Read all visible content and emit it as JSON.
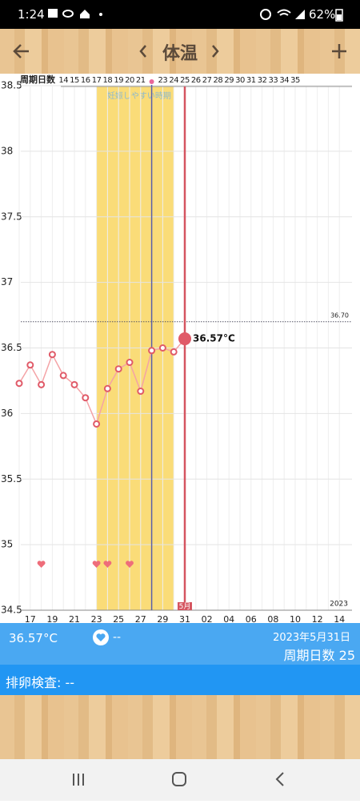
{
  "status_bar": {
    "time": "1:24",
    "battery": "62%"
  },
  "header": {
    "title": "体温"
  },
  "chart_data": {
    "type": "line",
    "cycle_label": "周期日数",
    "cycle_days": [
      "14",
      "15",
      "16",
      "17",
      "18",
      "19",
      "20",
      "21",
      null,
      "23",
      "24",
      "25",
      "26",
      "27",
      "28",
      "29",
      "30",
      "31",
      "32",
      "33",
      "34",
      "35"
    ],
    "categories": [
      null,
      "17",
      null,
      "19",
      null,
      "21",
      null,
      "23",
      null,
      "25",
      null,
      "27",
      null,
      "29",
      null,
      "31",
      null,
      "02",
      null,
      "04",
      null,
      "06",
      null,
      "08",
      null,
      "10",
      null,
      "12",
      null,
      "14"
    ],
    "series": [
      {
        "name": "体温",
        "color": "#f4a3a6",
        "values": [
          36.23,
          36.37,
          36.22,
          36.45,
          36.29,
          36.22,
          36.12,
          35.92,
          36.19,
          36.34,
          36.39,
          36.17,
          36.48,
          36.5,
          36.47,
          36.57,
          null,
          null,
          null,
          null,
          null,
          null,
          null,
          null,
          null,
          null,
          null,
          null,
          null,
          null
        ],
        "value_labels": [
          null,
          null,
          null,
          null,
          null,
          null,
          null,
          null,
          null,
          null,
          null,
          null,
          null,
          null,
          null,
          "36.57°C",
          null,
          null,
          null,
          null,
          null,
          null,
          null,
          null,
          null,
          null,
          null,
          null,
          null,
          null
        ]
      }
    ],
    "ylim": [
      34.5,
      38.5
    ],
    "yticks": [
      34.5,
      35,
      35.5,
      36,
      36.5,
      37,
      37.5,
      38,
      38.5
    ],
    "threshold": {
      "value": 36.7,
      "label": "36.70"
    },
    "fertile_label": "妊娠しやすい時期",
    "month_label": "5月",
    "year": "2023",
    "grid": true
  },
  "info": {
    "temperature": "36.57°C",
    "heart": "--",
    "date": "2023年5月31日",
    "cycle_day": "周期日数 25"
  },
  "ovulation_test": "排卵検査: --"
}
